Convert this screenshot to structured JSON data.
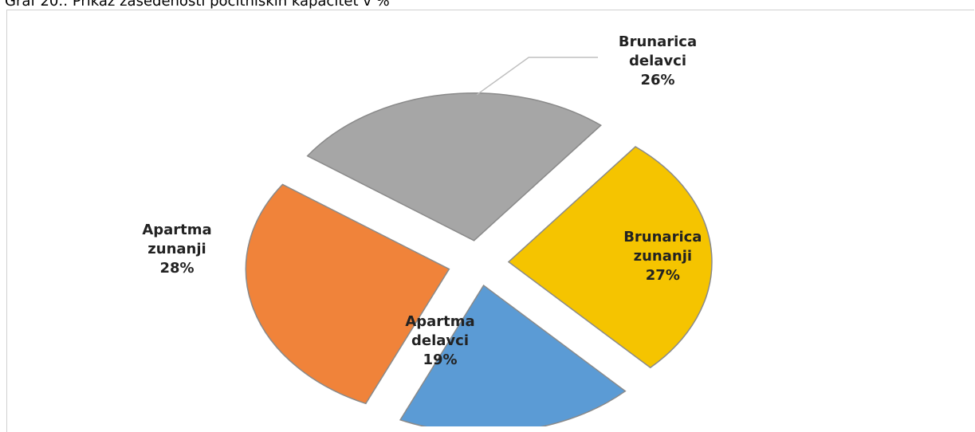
{
  "chart_data": {
    "type": "pie",
    "title": "Graf 20.: Prikaz zasedenosti počitniških kapacitet v %",
    "categories": [
      "Brunarica delavci",
      "Brunarica zunanji",
      "Apartma delavci",
      "Apartma zunanji"
    ],
    "values": [
      26,
      27,
      19,
      28
    ],
    "value_labels": [
      "26%",
      "27%",
      "19%",
      "28%"
    ],
    "colors": [
      "#a6a6a6",
      "#f5c400",
      "#5b9bd5",
      "#f0833a"
    ]
  }
}
